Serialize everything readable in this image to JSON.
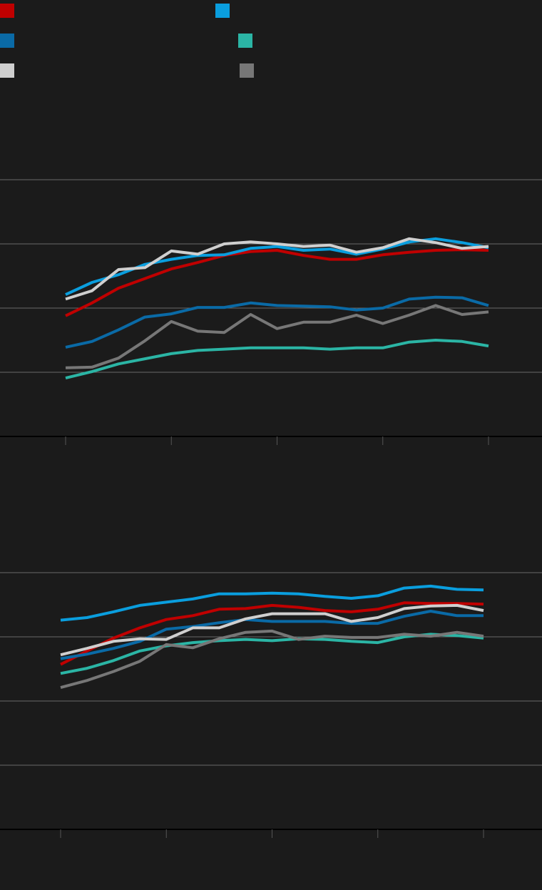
{
  "chart_data": [
    {
      "type": "line",
      "grid": true,
      "x": [
        0,
        1,
        2,
        3,
        4,
        5,
        6,
        7,
        8,
        9,
        10,
        11,
        12,
        13,
        14,
        15,
        16
      ],
      "xlim": [
        0,
        16
      ],
      "xticks": [
        0,
        4,
        8,
        12,
        16
      ],
      "ylim": [
        0,
        5
      ],
      "yticks": [
        0,
        1,
        2,
        3,
        4
      ],
      "series": [
        {
          "color": "#c00000",
          "values": [
            1.88,
            2.08,
            2.31,
            2.46,
            2.61,
            2.71,
            2.82,
            2.88,
            2.9,
            2.82,
            2.76,
            2.76,
            2.83,
            2.87,
            2.9,
            2.91,
            2.9
          ]
        },
        {
          "color": "#0a9ede",
          "values": [
            2.21,
            2.4,
            2.52,
            2.68,
            2.76,
            2.82,
            2.83,
            2.93,
            2.96,
            2.9,
            2.92,
            2.84,
            2.92,
            3.03,
            3.08,
            3.02,
            2.94
          ]
        },
        {
          "color": "#0a6aa6",
          "values": [
            1.39,
            1.48,
            1.66,
            1.86,
            1.91,
            2.01,
            2.01,
            2.08,
            2.04,
            2.03,
            2.02,
            1.97,
            2.0,
            2.14,
            2.17,
            2.16,
            2.04
          ]
        },
        {
          "color": "#2bb5a5",
          "values": [
            0.91,
            1.01,
            1.13,
            1.21,
            1.29,
            1.34,
            1.36,
            1.38,
            1.38,
            1.38,
            1.36,
            1.38,
            1.38,
            1.47,
            1.5,
            1.48,
            1.41
          ]
        },
        {
          "color": "#cfcfcf",
          "values": [
            2.14,
            2.27,
            2.6,
            2.63,
            2.89,
            2.84,
            3.0,
            3.03,
            3.0,
            2.96,
            2.98,
            2.87,
            2.94,
            3.08,
            3.02,
            2.93,
            2.96
          ]
        },
        {
          "color": "#777777",
          "values": [
            1.07,
            1.08,
            1.22,
            1.49,
            1.79,
            1.64,
            1.62,
            1.9,
            1.68,
            1.78,
            1.78,
            1.89,
            1.76,
            1.89,
            2.04,
            1.9,
            1.94
          ]
        }
      ]
    },
    {
      "type": "line",
      "grid": true,
      "x": [
        0,
        1,
        2,
        3,
        4,
        5,
        6,
        7,
        8,
        9,
        10,
        11,
        12,
        13,
        14,
        15,
        16
      ],
      "xlim": [
        0,
        16
      ],
      "xticks": [
        0,
        4,
        8,
        12,
        16
      ],
      "ylim": [
        0,
        5
      ],
      "yticks": [
        0,
        1,
        2,
        3,
        4
      ],
      "series": [
        {
          "color": "#c00000",
          "values": [
            2.57,
            2.78,
            2.98,
            3.14,
            3.27,
            3.33,
            3.43,
            3.44,
            3.49,
            3.46,
            3.41,
            3.39,
            3.43,
            3.53,
            3.52,
            3.52,
            3.51
          ]
        },
        {
          "color": "#0a9ede",
          "values": [
            3.26,
            3.3,
            3.39,
            3.49,
            3.54,
            3.59,
            3.67,
            3.67,
            3.68,
            3.67,
            3.63,
            3.6,
            3.64,
            3.76,
            3.79,
            3.74,
            3.73
          ]
        },
        {
          "color": "#0a6aa6",
          "values": [
            2.66,
            2.73,
            2.82,
            2.93,
            3.12,
            3.16,
            3.22,
            3.27,
            3.24,
            3.24,
            3.24,
            3.21,
            3.21,
            3.32,
            3.4,
            3.33,
            3.33
          ]
        },
        {
          "color": "#2bb5a5",
          "values": [
            2.43,
            2.51,
            2.63,
            2.78,
            2.86,
            2.91,
            2.94,
            2.96,
            2.94,
            2.97,
            2.96,
            2.93,
            2.91,
            3.0,
            3.04,
            3.02,
            2.98
          ]
        },
        {
          "color": "#cfcfcf",
          "values": [
            2.72,
            2.82,
            2.93,
            2.97,
            2.96,
            3.14,
            3.14,
            3.28,
            3.36,
            3.36,
            3.36,
            3.24,
            3.3,
            3.44,
            3.48,
            3.49,
            3.41
          ]
        },
        {
          "color": "#777777",
          "values": [
            2.21,
            2.32,
            2.46,
            2.62,
            2.88,
            2.83,
            2.97,
            3.07,
            3.09,
            2.96,
            3.01,
            2.99,
            2.99,
            3.04,
            3.01,
            3.07,
            3.01
          ]
        }
      ]
    }
  ]
}
